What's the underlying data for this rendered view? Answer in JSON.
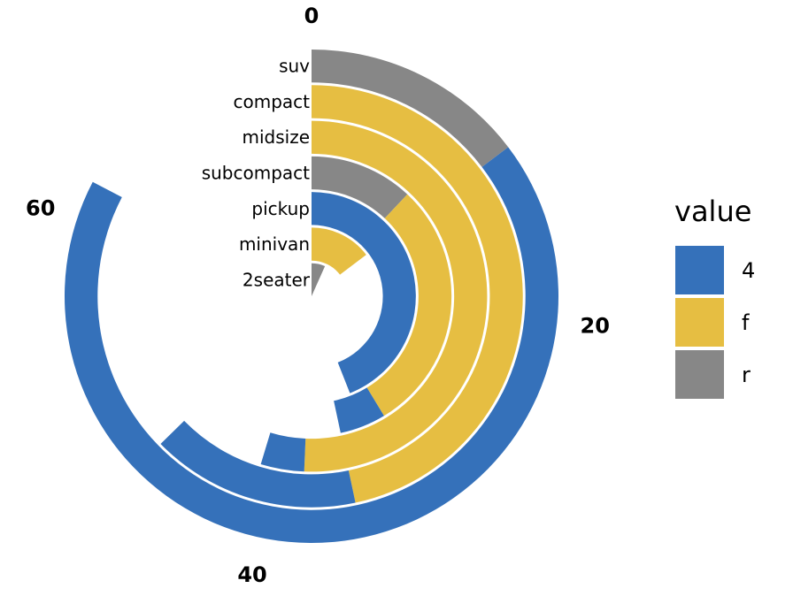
{
  "chart_data": {
    "type": "radial_stacked_bar",
    "categories": [
      "2seater",
      "minivan",
      "pickup",
      "subcompact",
      "midsize",
      "compact",
      "suv"
    ],
    "angle_axis": {
      "min": 0,
      "max": 75,
      "ticks": [
        0,
        20,
        40,
        60
      ]
    },
    "series": [
      {
        "name": "r",
        "color": "#878787",
        "values": [
          5,
          0,
          0,
          9,
          0,
          0,
          11
        ]
      },
      {
        "name": "f",
        "color": "#E6BE42",
        "values": [
          0,
          11,
          0,
          22,
          38,
          35,
          0
        ]
      },
      {
        "name": "4",
        "color": "#3571BA",
        "values": [
          0,
          0,
          33,
          4,
          3,
          12,
          51
        ]
      }
    ],
    "legend": {
      "title": "value",
      "placement": "right",
      "entries": [
        {
          "label": "4",
          "color": "#3571BA"
        },
        {
          "label": "f",
          "color": "#E6BE42"
        },
        {
          "label": "r",
          "color": "#878787"
        }
      ]
    }
  }
}
